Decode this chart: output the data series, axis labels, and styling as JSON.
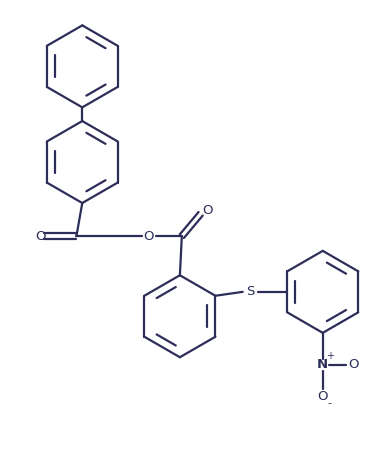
{
  "bg_color": "#ffffff",
  "line_color": "#2d2d5a",
  "line_width": 1.6,
  "fig_width": 3.91,
  "fig_height": 4.49,
  "dpi": 100,
  "xlim": [
    0,
    10
  ],
  "ylim": [
    0,
    11.5
  ]
}
